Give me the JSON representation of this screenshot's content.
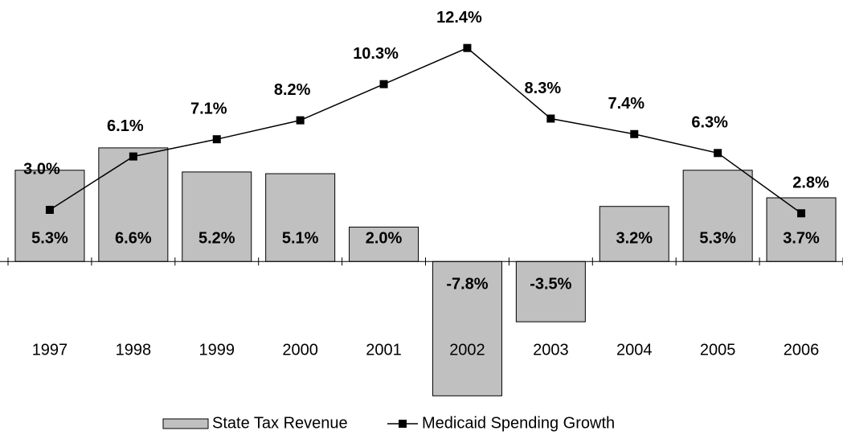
{
  "chart_data": {
    "type": "bar",
    "categories": [
      "1997",
      "1998",
      "1999",
      "2000",
      "2001",
      "2002",
      "2003",
      "2004",
      "2005",
      "2006"
    ],
    "series": [
      {
        "name": "State Tax Revenue",
        "type": "bar",
        "color": "#c0c0c0",
        "values": [
          5.3,
          6.6,
          5.2,
          5.1,
          2.0,
          -7.8,
          -3.5,
          3.2,
          5.3,
          3.7
        ],
        "value_labels": [
          "5.3%",
          "6.6%",
          "5.2%",
          "5.1%",
          "2.0%",
          "-7.8%",
          "-3.5%",
          "3.2%",
          "5.3%",
          "3.7%"
        ]
      },
      {
        "name": "Medicaid Spending Growth",
        "type": "line",
        "color": "#000000",
        "values": [
          3.0,
          6.1,
          7.1,
          8.2,
          10.3,
          12.4,
          8.3,
          7.4,
          6.3,
          2.8
        ],
        "value_labels": [
          "3.0%",
          "6.1%",
          "7.1%",
          "8.2%",
          "10.3%",
          "12.4%",
          "8.3%",
          "7.4%",
          "6.3%",
          "2.8%"
        ]
      }
    ],
    "ylim": [
      -9,
      15
    ]
  }
}
